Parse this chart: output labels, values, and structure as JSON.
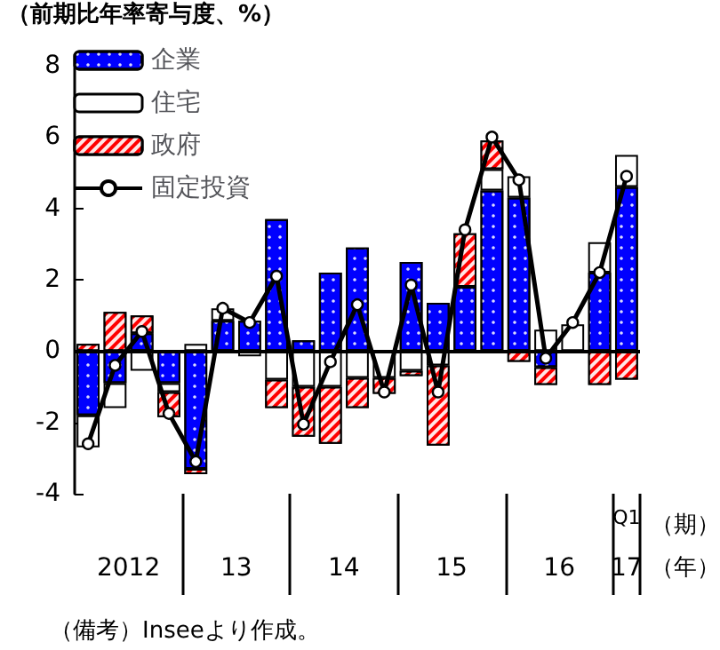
{
  "chart_data": {
    "type": "bar",
    "stacked": true,
    "ylabel": "（前期比年率寄与度、%）",
    "categories": [
      null,
      null,
      null,
      null,
      null,
      null,
      null,
      null,
      null,
      null,
      null,
      null,
      null,
      null,
      null,
      null,
      null,
      null,
      null,
      null,
      "Q1"
    ],
    "series": [
      {
        "name": "企業",
        "color": "#0000ff",
        "values": [
          -1.8,
          -0.9,
          0.5,
          -0.9,
          -3.3,
          0.85,
          0.85,
          3.7,
          0.3,
          2.2,
          2.9,
          null,
          2.5,
          1.35,
          1.8,
          4.5,
          4.3,
          -0.45,
          null,
          2.2,
          4.6
        ]
      },
      {
        "name": "住宅",
        "color": "#ffffff",
        "values": [
          -0.9,
          -0.7,
          -0.55,
          -0.25,
          0.2,
          0.35,
          -0.15,
          -0.8,
          -1.0,
          -1.0,
          -0.75,
          -0.75,
          -0.55,
          -0.4,
          0.0,
          0.6,
          0.6,
          0.6,
          0.75,
          0.85,
          0.9
        ]
      },
      {
        "name": "政府",
        "color": "#ff0000",
        "values": [
          0.2,
          1.1,
          0.5,
          -0.7,
          -0.15,
          0.0,
          0.0,
          -0.8,
          -1.4,
          -1.6,
          -0.85,
          -0.45,
          -0.15,
          -2.25,
          1.5,
          0.8,
          -0.3,
          -0.5,
          0.0,
          -0.95,
          -0.8
        ]
      },
      {
        "name": "固定投資",
        "type": "line",
        "color": "#000000",
        "marker": "circle",
        "values": [
          -2.6,
          -0.4,
          0.55,
          -1.75,
          -3.1,
          1.2,
          0.8,
          2.1,
          -2.05,
          -0.3,
          1.3,
          -1.15,
          1.85,
          -1.15,
          3.4,
          6.0,
          4.8,
          -0.2,
          0.8,
          2.2,
          4.9
        ]
      }
    ],
    "ref_lines": [
      {
        "axis": "y",
        "value": 0,
        "color": "#000000"
      }
    ],
    "ylim": [
      -4,
      8
    ],
    "yticks": [
      -4,
      -2,
      0,
      2,
      4,
      6,
      8
    ],
    "grid": false,
    "legend": "top left",
    "annotations": [
      "2012",
      "13",
      "14",
      "15",
      "16",
      "17",
      "（期）",
      "（年）",
      "（備考）Inseeより作成。"
    ]
  }
}
